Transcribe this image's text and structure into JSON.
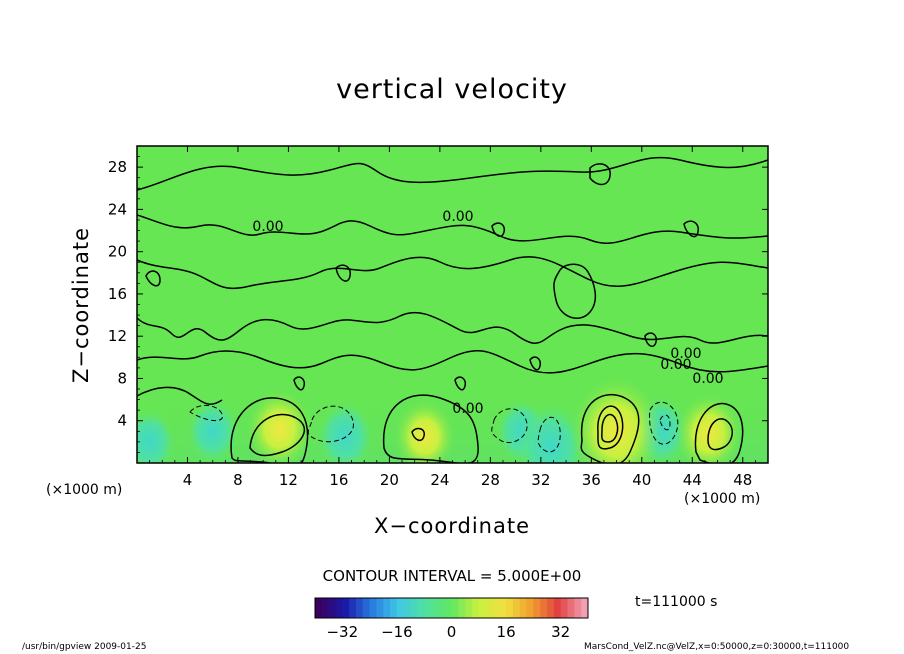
{
  "chart_data": {
    "type": "heatmap",
    "title": "vertical velocity",
    "xlabel": "X−coordinate",
    "ylabel": "Z−coordinate",
    "x_unit": "(×1000 m)",
    "z_unit": "(×1000 m)",
    "xlim": [
      0,
      50
    ],
    "ylim": [
      0,
      30
    ],
    "x_ticks": [
      4,
      8,
      12,
      16,
      20,
      24,
      28,
      32,
      36,
      40,
      44,
      48
    ],
    "y_ticks": [
      4,
      8,
      12,
      16,
      20,
      24,
      28
    ],
    "contour_interval": "CONTOUR INTERVAL = 5.000E+00",
    "contour_labels": [
      "0.00",
      "0.00",
      "0.00",
      "0.00",
      "0.00",
      "0.00"
    ],
    "time_label": "t=111000 s",
    "colorbar": {
      "range": [
        -40,
        40
      ],
      "ticks": [
        -32,
        -16,
        0,
        16,
        32
      ],
      "colors": [
        "#3a0060",
        "#1a1aa8",
        "#2a7ae0",
        "#40c8e8",
        "#50e0a0",
        "#60e860",
        "#c8f040",
        "#f0e040",
        "#f0a030",
        "#e04040",
        "#f0a0b0"
      ]
    },
    "updrafts": [
      {
        "x": 11.3,
        "z": 3.2,
        "peak": 12
      },
      {
        "x": 22.8,
        "z": 2.5,
        "peak": 10
      },
      {
        "x": 38.0,
        "z": 3.0,
        "peak": 22
      },
      {
        "x": 45.3,
        "z": 2.8,
        "peak": 12
      }
    ],
    "downdrafts": [
      {
        "x": 6,
        "z": 3,
        "peak": -5
      },
      {
        "x": 16.5,
        "z": 2.5,
        "peak": -6
      },
      {
        "x": 30.5,
        "z": 3,
        "peak": -5
      },
      {
        "x": 32.8,
        "z": 1.5,
        "peak": -9
      },
      {
        "x": 41.5,
        "z": 3,
        "peak": -6
      },
      {
        "x": 1,
        "z": 2,
        "peak": -5
      }
    ],
    "grid": false
  },
  "footer": {
    "left": "/usr/bin/gpview   2009-01-25",
    "right": "MarsCond_VelZ.nc@VelZ,x=0:50000,z=0:30000,t=111000"
  }
}
